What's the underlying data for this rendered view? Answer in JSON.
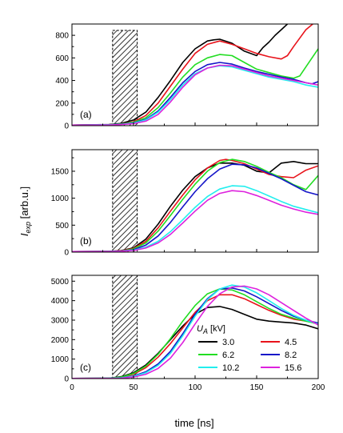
{
  "chart_data": {
    "type": "line",
    "xlabel": "time [ns]",
    "ylabel_main": "I",
    "ylabel_sub": "exp",
    "ylabel_unit": "[arb.u.]",
    "xlim": [
      0,
      200
    ],
    "xticks": [
      0,
      50,
      100,
      150,
      200
    ],
    "hatched_region": [
      33,
      53
    ],
    "legend": {
      "title_main": "U",
      "title_sub": "A",
      "title_unit": "[kV]",
      "placement": "bottom-right of panel (c)"
    },
    "series_meta": [
      {
        "name": "3.0",
        "color": "#000000"
      },
      {
        "name": "4.5",
        "color": "#e8131b"
      },
      {
        "name": "6.2",
        "color": "#22dd22"
      },
      {
        "name": "8.2",
        "color": "#1515c8"
      },
      {
        "name": "10.2",
        "color": "#22eeee"
      },
      {
        "name": "15.6",
        "color": "#dd22dd"
      }
    ],
    "panels": [
      {
        "label": "(a)",
        "ylim": [
          0,
          900
        ],
        "yticks": [
          0,
          200,
          400,
          600,
          800
        ],
        "series": [
          {
            "name": "3.0",
            "x": [
              0,
              30,
              40,
              50,
              60,
              70,
              80,
              90,
              100,
              110,
              115,
              120,
              130,
              140,
              150,
              155,
              160,
              165,
              170,
              175,
              178
            ],
            "y": [
              5,
              10,
              20,
              50,
              120,
              250,
              400,
              560,
              680,
              750,
              760,
              765,
              730,
              660,
              620,
              690,
              740,
              800,
              850,
              900,
              920
            ]
          },
          {
            "name": "4.5",
            "x": [
              0,
              30,
              40,
              50,
              60,
              70,
              80,
              90,
              100,
              110,
              120,
              130,
              140,
              150,
              160,
              170,
              175,
              180,
              190,
              200
            ],
            "y": [
              5,
              8,
              15,
              35,
              90,
              200,
              350,
              500,
              640,
              720,
              750,
              720,
              680,
              640,
              610,
              590,
              620,
              700,
              850,
              940
            ]
          },
          {
            "name": "6.2",
            "x": [
              0,
              30,
              40,
              50,
              60,
              70,
              80,
              90,
              100,
              110,
              120,
              130,
              140,
              150,
              160,
              170,
              180,
              185,
              190,
              200
            ],
            "y": [
              5,
              8,
              15,
              30,
              70,
              160,
              290,
              430,
              540,
              600,
              630,
              620,
              560,
              500,
              470,
              440,
              420,
              440,
              520,
              680
            ]
          },
          {
            "name": "8.2",
            "x": [
              0,
              30,
              40,
              50,
              60,
              70,
              80,
              90,
              100,
              110,
              120,
              130,
              140,
              150,
              160,
              170,
              180,
              190,
              195,
              200
            ],
            "y": [
              5,
              8,
              12,
              25,
              55,
              130,
              250,
              380,
              480,
              540,
              560,
              545,
              510,
              480,
              455,
              430,
              410,
              380,
              370,
              390
            ]
          },
          {
            "name": "10.2",
            "x": [
              0,
              30,
              40,
              50,
              60,
              70,
              80,
              90,
              100,
              110,
              120,
              130,
              140,
              150,
              160,
              170,
              180,
              190,
              200
            ],
            "y": [
              5,
              8,
              12,
              22,
              50,
              120,
              230,
              360,
              460,
              510,
              530,
              520,
              490,
              460,
              430,
              410,
              390,
              360,
              340
            ]
          },
          {
            "name": "15.6",
            "x": [
              0,
              30,
              40,
              50,
              60,
              70,
              80,
              90,
              100,
              110,
              120,
              130,
              140,
              150,
              160,
              170,
              180,
              190,
              200
            ],
            "y": [
              5,
              6,
              10,
              18,
              40,
              100,
              210,
              340,
              450,
              510,
              535,
              530,
              500,
              470,
              440,
              420,
              400,
              380,
              360
            ]
          }
        ]
      },
      {
        "label": "(b)",
        "ylim": [
          0,
          1900
        ],
        "yticks": [
          0,
          500,
          1000,
          1500
        ],
        "series": [
          {
            "name": "3.0",
            "x": [
              0,
              30,
              40,
              50,
              60,
              70,
              80,
              90,
              100,
              110,
              120,
              130,
              140,
              150,
              160,
              170,
              180,
              190,
              200
            ],
            "y": [
              10,
              15,
              30,
              80,
              240,
              520,
              850,
              1150,
              1400,
              1560,
              1650,
              1650,
              1610,
              1500,
              1470,
              1650,
              1680,
              1640,
              1640
            ]
          },
          {
            "name": "4.5",
            "x": [
              0,
              30,
              40,
              50,
              60,
              70,
              80,
              90,
              100,
              110,
              120,
              125,
              130,
              140,
              150,
              160,
              170,
              180,
              190,
              200
            ],
            "y": [
              10,
              12,
              25,
              70,
              200,
              450,
              760,
              1060,
              1340,
              1560,
              1700,
              1720,
              1700,
              1640,
              1540,
              1440,
              1400,
              1380,
              1520,
              1600
            ]
          },
          {
            "name": "6.2",
            "x": [
              0,
              30,
              40,
              50,
              60,
              70,
              80,
              90,
              100,
              110,
              120,
              130,
              140,
              150,
              160,
              170,
              180,
              190,
              200
            ],
            "y": [
              10,
              12,
              20,
              60,
              170,
              390,
              680,
              980,
              1260,
              1500,
              1660,
              1720,
              1680,
              1590,
              1480,
              1380,
              1250,
              1160,
              1420
            ]
          },
          {
            "name": "8.2",
            "x": [
              0,
              30,
              40,
              50,
              60,
              70,
              80,
              90,
              100,
              110,
              120,
              130,
              140,
              150,
              160,
              170,
              180,
              190,
              200
            ],
            "y": [
              10,
              12,
              20,
              45,
              130,
              300,
              550,
              840,
              1120,
              1360,
              1540,
              1630,
              1620,
              1560,
              1460,
              1360,
              1240,
              1120,
              1060
            ]
          },
          {
            "name": "10.2",
            "x": [
              0,
              30,
              40,
              50,
              60,
              70,
              80,
              90,
              100,
              110,
              120,
              130,
              140,
              150,
              160,
              170,
              180,
              190,
              200
            ],
            "y": [
              10,
              12,
              18,
              35,
              90,
              200,
              380,
              600,
              830,
              1030,
              1170,
              1230,
              1220,
              1140,
              1040,
              940,
              850,
              790,
              730
            ]
          },
          {
            "name": "15.6",
            "x": [
              0,
              30,
              40,
              50,
              60,
              70,
              80,
              90,
              100,
              110,
              120,
              130,
              140,
              150,
              160,
              170,
              180,
              190,
              200
            ],
            "y": [
              10,
              11,
              16,
              30,
              75,
              170,
              330,
              540,
              760,
              960,
              1090,
              1140,
              1120,
              1050,
              960,
              870,
              800,
              740,
              700
            ]
          }
        ]
      },
      {
        "label": "(c)",
        "ylim": [
          0,
          5300
        ],
        "yticks": [
          0,
          1000,
          2000,
          3000,
          4000,
          5000
        ],
        "series": [
          {
            "name": "3.0",
            "x": [
              0,
              30,
              40,
              50,
              60,
              70,
              80,
              90,
              100,
              110,
              120,
              130,
              140,
              150,
              160,
              170,
              180,
              190,
              200
            ],
            "y": [
              10,
              20,
              100,
              300,
              700,
              1300,
              2000,
              2700,
              3300,
              3650,
              3700,
              3550,
              3300,
              3050,
              2950,
              2900,
              2850,
              2750,
              2550
            ]
          },
          {
            "name": "4.5",
            "x": [
              0,
              30,
              40,
              50,
              60,
              70,
              80,
              90,
              100,
              110,
              120,
              130,
              140,
              150,
              160,
              170,
              180,
              190,
              200
            ],
            "y": [
              10,
              15,
              70,
              220,
              560,
              1100,
              1800,
              2600,
              3400,
              4000,
              4300,
              4300,
              4100,
              3800,
              3500,
              3250,
              3050,
              2950,
              2850
            ]
          },
          {
            "name": "6.2",
            "x": [
              0,
              30,
              40,
              50,
              60,
              70,
              80,
              90,
              100,
              110,
              120,
              130,
              140,
              150,
              160,
              170,
              180,
              190,
              200
            ],
            "y": [
              10,
              15,
              80,
              260,
              640,
              1250,
              2050,
              2950,
              3750,
              4350,
              4600,
              4550,
              4300,
              3950,
              3600,
              3300,
              3100,
              2950,
              2800
            ]
          },
          {
            "name": "8.2",
            "x": [
              0,
              30,
              40,
              50,
              60,
              70,
              80,
              90,
              100,
              110,
              120,
              130,
              140,
              150,
              160,
              170,
              180,
              190,
              200
            ],
            "y": [
              10,
              12,
              40,
              130,
              350,
              750,
              1400,
              2300,
              3300,
              4100,
              4600,
              4650,
              4500,
              4200,
              3850,
              3500,
              3200,
              3000,
              2850
            ]
          },
          {
            "name": "10.2",
            "x": [
              0,
              30,
              40,
              50,
              60,
              70,
              80,
              90,
              100,
              110,
              120,
              130,
              140,
              150,
              160,
              170,
              180,
              190,
              200
            ],
            "y": [
              10,
              12,
              35,
              110,
              300,
              680,
              1300,
              2200,
              3200,
              4050,
              4600,
              4800,
              4700,
              4400,
              4000,
              3600,
              3250,
              3000,
              2800
            ]
          },
          {
            "name": "15.6",
            "x": [
              0,
              30,
              40,
              50,
              60,
              70,
              80,
              90,
              100,
              110,
              120,
              130,
              140,
              150,
              160,
              170,
              180,
              190,
              200
            ],
            "y": [
              10,
              10,
              25,
              80,
              220,
              520,
              1050,
              1850,
              2800,
              3700,
              4350,
              4700,
              4750,
              4600,
              4300,
              3900,
              3500,
              3100,
              2750
            ]
          }
        ]
      }
    ]
  }
}
